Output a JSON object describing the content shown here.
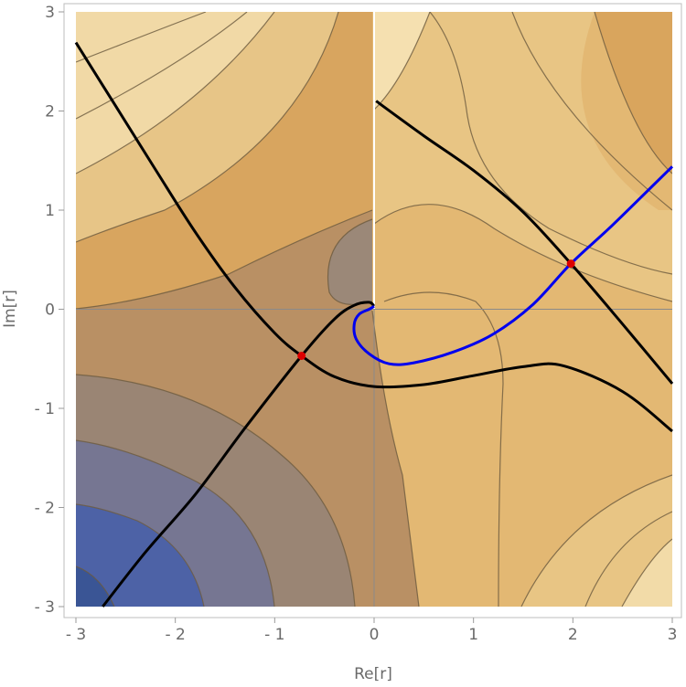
{
  "chart_data": {
    "type": "contour",
    "title": "",
    "xlabel": "Re[r]",
    "ylabel": "Im[r]",
    "xlim": [
      -3,
      3
    ],
    "ylim": [
      -3,
      3
    ],
    "x_ticks": [
      -3,
      -2,
      -1,
      0,
      1,
      2,
      3
    ],
    "y_ticks": [
      -3,
      -2,
      -1,
      0,
      1,
      2,
      3
    ],
    "x_tick_labels": [
      "- 3",
      "- 2",
      "- 1",
      "0",
      "1",
      "2",
      "3"
    ],
    "y_tick_labels": [
      "- 3",
      "- 2",
      "- 1",
      "0",
      "1",
      "2",
      "3"
    ],
    "grid": false,
    "legend": "none",
    "branch_cut": {
      "x": 0,
      "from_y": 0,
      "to_y": 3,
      "color": "#ffffff"
    },
    "colors": {
      "frame": "#bdbdbd",
      "origin_axes": "#8a8a8a",
      "contour_line": "#6b5a3e",
      "black_curves": "#000000",
      "blue_curve": "#0000ee",
      "saddle_points": "#dd0000"
    },
    "saddle_points": [
      {
        "x": -0.73,
        "y": -0.47
      },
      {
        "x": 1.98,
        "y": 0.46
      }
    ],
    "black_curves": [
      [
        [
          -3.0,
          2.69
        ],
        [
          -2.6,
          2.05
        ],
        [
          -2.2,
          1.41
        ],
        [
          -1.8,
          0.78
        ],
        [
          -1.4,
          0.22
        ],
        [
          -1.0,
          -0.24
        ],
        [
          -0.73,
          -0.47
        ],
        [
          -0.4,
          -0.68
        ],
        [
          0.0,
          -0.78
        ],
        [
          0.5,
          -0.76
        ],
        [
          1.0,
          -0.67
        ],
        [
          1.5,
          -0.58
        ],
        [
          1.9,
          -0.57
        ],
        [
          2.5,
          -0.83
        ],
        [
          3.0,
          -1.23
        ]
      ],
      [
        [
          -2.73,
          -3.0
        ],
        [
          -2.3,
          -2.45
        ],
        [
          -1.8,
          -1.87
        ],
        [
          -1.3,
          -1.2
        ],
        [
          -0.73,
          -0.47
        ],
        [
          -0.4,
          -0.1
        ],
        [
          -0.2,
          0.04
        ],
        [
          -0.05,
          0.07
        ],
        [
          0.0,
          0.03
        ]
      ],
      [
        [
          0.02,
          2.1
        ],
        [
          0.5,
          1.75
        ],
        [
          1.0,
          1.4
        ],
        [
          1.5,
          0.98
        ],
        [
          1.98,
          0.46
        ],
        [
          2.5,
          -0.15
        ],
        [
          3.0,
          -0.75
        ]
      ]
    ],
    "blue_curve": [
      [
        0.0,
        0.03
      ],
      [
        -0.05,
        0.0
      ],
      [
        -0.15,
        -0.05
      ],
      [
        -0.2,
        -0.15
      ],
      [
        -0.18,
        -0.3
      ],
      [
        -0.05,
        -0.45
      ],
      [
        0.15,
        -0.55
      ],
      [
        0.4,
        -0.54
      ],
      [
        0.8,
        -0.43
      ],
      [
        1.2,
        -0.25
      ],
      [
        1.6,
        0.05
      ],
      [
        1.98,
        0.46
      ],
      [
        2.4,
        0.85
      ],
      [
        3.0,
        1.44
      ]
    ],
    "contour_bands": [
      {
        "level": 1,
        "color": "#3f5ca8"
      },
      {
        "level": 2,
        "color": "#6f7494"
      },
      {
        "level": 3,
        "color": "#9b8672"
      },
      {
        "level": 4,
        "color": "#bb9260"
      },
      {
        "level": 5,
        "color": "#d5a45f"
      },
      {
        "level": 6,
        "color": "#dfb26a"
      },
      {
        "level": 7,
        "color": "#e7c27e"
      },
      {
        "level": 8,
        "color": "#eed29a"
      },
      {
        "level": 9,
        "color": "#f6e6bd"
      }
    ]
  }
}
